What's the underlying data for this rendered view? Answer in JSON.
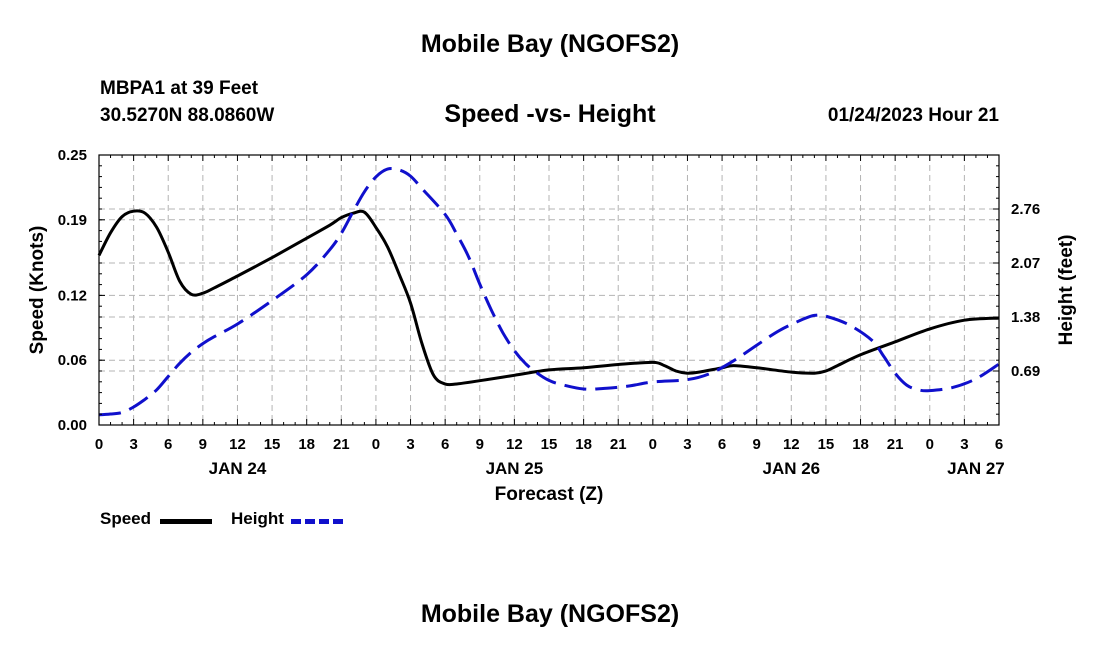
{
  "page_title": "Mobile Bay (NGOFS2)",
  "page_title_bottom": "Mobile Bay (NGOFS2)",
  "station": "MBPA1 at 39 Feet",
  "coordinates": "30.5270N  88.0860W",
  "subtitle": "Speed -vs- Height",
  "datetime": "01/24/2023 Hour 21",
  "legend": {
    "speed_label": "Speed",
    "height_label": "Height",
    "speed_color": "#000000",
    "height_color": "#1010cc"
  },
  "chart_data": {
    "type": "line",
    "title": "Speed -vs- Height",
    "xlabel": "Forecast (Z)",
    "ylabel_left": "Speed (Knots)",
    "ylabel_right": "Height (feet)",
    "x_unit": "hours from 00Z Jan 24",
    "xlim": [
      0,
      78
    ],
    "ylim_left": [
      0,
      0.25
    ],
    "ylim_right": [
      0,
      3.45
    ],
    "x_ticks": [
      0,
      3,
      6,
      9,
      12,
      15,
      18,
      21,
      24,
      27,
      30,
      33,
      36,
      39,
      42,
      45,
      48,
      51,
      54,
      57,
      60,
      63,
      66,
      69,
      72,
      75,
      78
    ],
    "x_tick_labels": [
      "0",
      "3",
      "6",
      "9",
      "12",
      "15",
      "18",
      "21",
      "0",
      "3",
      "6",
      "9",
      "12",
      "15",
      "18",
      "21",
      "0",
      "3",
      "6",
      "9",
      "12",
      "15",
      "18",
      "21",
      "0",
      "3",
      "6"
    ],
    "date_labels": [
      {
        "x": 12,
        "label": "JAN 24"
      },
      {
        "x": 36,
        "label": "JAN 25"
      },
      {
        "x": 60,
        "label": "JAN 26"
      },
      {
        "x": 76,
        "label": "JAN 27"
      }
    ],
    "y_left_ticks": [
      0,
      0.06,
      0.12,
      0.19,
      0.25
    ],
    "y_left_tick_labels": [
      "0.00",
      "0.06",
      "0.12",
      "0.19",
      "0.25"
    ],
    "y_right_ticks": [
      0.69,
      1.38,
      2.07,
      2.76
    ],
    "y_right_tick_labels": [
      "0.69",
      "1.38",
      "2.07",
      "2.76"
    ],
    "grid": true,
    "series": [
      {
        "name": "Speed",
        "axis": "left",
        "style": "solid",
        "color": "#000000",
        "points": [
          [
            0,
            0.157
          ],
          [
            1,
            0.178
          ],
          [
            2,
            0.193
          ],
          [
            3,
            0.198
          ],
          [
            4,
            0.196
          ],
          [
            5,
            0.183
          ],
          [
            6,
            0.16
          ],
          [
            7,
            0.133
          ],
          [
            8,
            0.121
          ],
          [
            9,
            0.122
          ],
          [
            10,
            0.127
          ],
          [
            12,
            0.138
          ],
          [
            15,
            0.155
          ],
          [
            18,
            0.173
          ],
          [
            20,
            0.185
          ],
          [
            21,
            0.192
          ],
          [
            22,
            0.196
          ],
          [
            23,
            0.197
          ],
          [
            24,
            0.183
          ],
          [
            25,
            0.165
          ],
          [
            26,
            0.14
          ],
          [
            27,
            0.113
          ],
          [
            28,
            0.075
          ],
          [
            29,
            0.046
          ],
          [
            30,
            0.038
          ],
          [
            31,
            0.038
          ],
          [
            33,
            0.041
          ],
          [
            36,
            0.046
          ],
          [
            39,
            0.051
          ],
          [
            42,
            0.053
          ],
          [
            45,
            0.056
          ],
          [
            48,
            0.058
          ],
          [
            49,
            0.055
          ],
          [
            50,
            0.05
          ],
          [
            51,
            0.048
          ],
          [
            52,
            0.049
          ],
          [
            54,
            0.053
          ],
          [
            55,
            0.055
          ],
          [
            57,
            0.053
          ],
          [
            60,
            0.049
          ],
          [
            62,
            0.048
          ],
          [
            63,
            0.05
          ],
          [
            64,
            0.055
          ],
          [
            66,
            0.065
          ],
          [
            69,
            0.077
          ],
          [
            72,
            0.089
          ],
          [
            75,
            0.097
          ],
          [
            78,
            0.099
          ]
        ]
      },
      {
        "name": "Height",
        "axis": "right",
        "style": "dashed",
        "color": "#1010cc",
        "points": [
          [
            0,
            0.13
          ],
          [
            1,
            0.14
          ],
          [
            2,
            0.16
          ],
          [
            3,
            0.23
          ],
          [
            4,
            0.33
          ],
          [
            5,
            0.45
          ],
          [
            6,
            0.62
          ],
          [
            7,
            0.79
          ],
          [
            8,
            0.93
          ],
          [
            9,
            1.04
          ],
          [
            10,
            1.13
          ],
          [
            12,
            1.29
          ],
          [
            15,
            1.59
          ],
          [
            18,
            1.92
          ],
          [
            20,
            2.24
          ],
          [
            21,
            2.45
          ],
          [
            22,
            2.72
          ],
          [
            23,
            2.98
          ],
          [
            24,
            3.17
          ],
          [
            25,
            3.27
          ],
          [
            26,
            3.26
          ],
          [
            27,
            3.18
          ],
          [
            28,
            3.02
          ],
          [
            30,
            2.69
          ],
          [
            31,
            2.44
          ],
          [
            32,
            2.16
          ],
          [
            33,
            1.8
          ],
          [
            34,
            1.47
          ],
          [
            35,
            1.18
          ],
          [
            36,
            0.95
          ],
          [
            37,
            0.78
          ],
          [
            38,
            0.66
          ],
          [
            39,
            0.57
          ],
          [
            40,
            0.52
          ],
          [
            42,
            0.46
          ],
          [
            44,
            0.47
          ],
          [
            46,
            0.5
          ],
          [
            48,
            0.55
          ],
          [
            51,
            0.58
          ],
          [
            53,
            0.66
          ],
          [
            55,
            0.82
          ],
          [
            57,
            1.02
          ],
          [
            59,
            1.21
          ],
          [
            61,
            1.35
          ],
          [
            62,
            1.4
          ],
          [
            63,
            1.39
          ],
          [
            65,
            1.28
          ],
          [
            67,
            1.08
          ],
          [
            68,
            0.88
          ],
          [
            69,
            0.66
          ],
          [
            70,
            0.51
          ],
          [
            71,
            0.45
          ],
          [
            72,
            0.44
          ],
          [
            74,
            0.48
          ],
          [
            76,
            0.59
          ],
          [
            78,
            0.78
          ]
        ]
      }
    ]
  }
}
